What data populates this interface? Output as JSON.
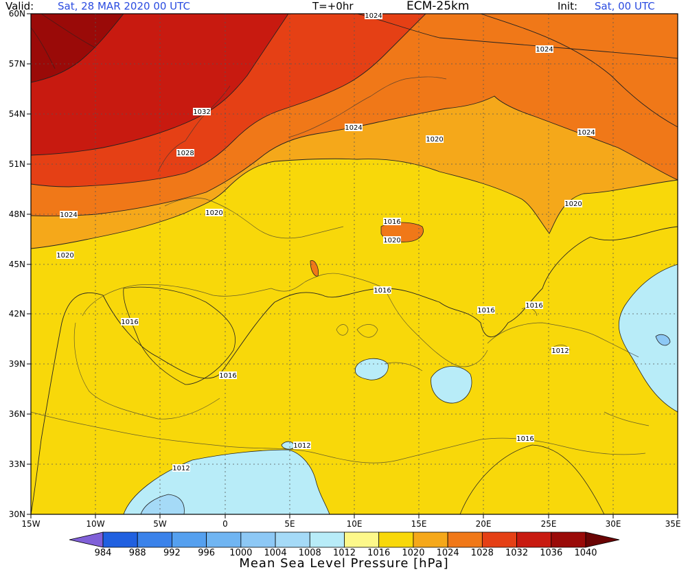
{
  "header": {
    "valid_label": "Valid:",
    "valid_value": "Sat, 28 MAR 2020   00 UTC",
    "step": "T=+0hr",
    "model": "ECM-25km",
    "init_label": "Init:",
    "init_value": "Sat, 00 UTC"
  },
  "map": {
    "lat_labels": [
      "60N",
      "57N",
      "54N",
      "51N",
      "48N",
      "45N",
      "42N",
      "39N",
      "36N",
      "33N",
      "30N"
    ],
    "lon_labels": [
      "15W",
      "10W",
      "5W",
      "0",
      "5E",
      "10E",
      "15E",
      "20E",
      "25E",
      "30E",
      "35E"
    ],
    "contour_labels": [
      "1024",
      "1024",
      "1032",
      "1024",
      "1028",
      "1020",
      "1024",
      "1024",
      "1020",
      "1020",
      "1016",
      "1020",
      "1020",
      "1016",
      "1016",
      "1016",
      "1016",
      "1012",
      "1016",
      "1012",
      "1012",
      "1016"
    ]
  },
  "colorbar": {
    "ticks": [
      "984",
      "988",
      "992",
      "996",
      "1000",
      "1004",
      "1008",
      "1012",
      "1016",
      "1020",
      "1024",
      "1028",
      "1032",
      "1036",
      "1040"
    ],
    "colors": [
      "#2060e0",
      "#3a82ea",
      "#55a0ef",
      "#70b5f2",
      "#8dc8f5",
      "#a5daf7",
      "#b8ecf8",
      "#fdf88a",
      "#f8d80a",
      "#f5a81a",
      "#f07818",
      "#e54015",
      "#c81a10",
      "#9a0a08"
    ],
    "title": "Mean Sea Level Pressure [hPa]"
  },
  "legend_colors": {
    "header_value": "#2a4be0"
  }
}
